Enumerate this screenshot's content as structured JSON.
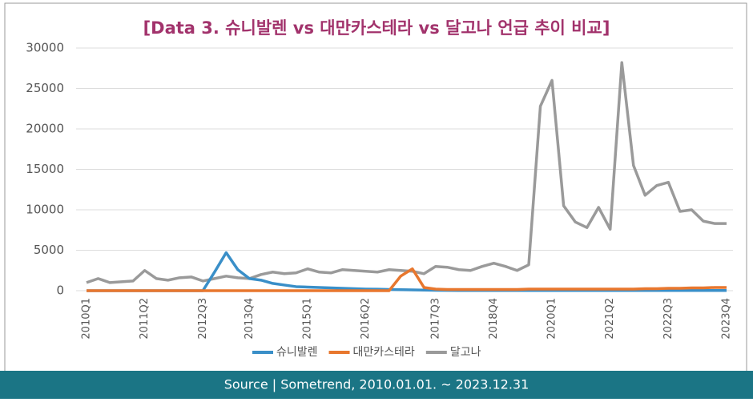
{
  "chart_data": {
    "type": "line",
    "title": "[Data 3. 슈니발렌 vs 대만카스테라 vs 달고나 언급 추이 비교]",
    "source": "Source | Sometrend, 2010.01.01. ~ 2023.12.31",
    "categories": [
      "2010Q1",
      null,
      null,
      null,
      null,
      "2011Q2",
      null,
      null,
      null,
      null,
      "2012Q3",
      null,
      null,
      null,
      "2013Q4",
      null,
      null,
      null,
      null,
      "2015Q1",
      null,
      null,
      null,
      null,
      "2016Q2",
      null,
      null,
      null,
      null,
      null,
      "2017Q3",
      null,
      null,
      null,
      null,
      "2018Q4",
      null,
      null,
      null,
      null,
      "2020Q1",
      null,
      null,
      null,
      null,
      "2021Q2",
      null,
      null,
      null,
      null,
      "2022Q3",
      null,
      null,
      null,
      null,
      "2023Q4"
    ],
    "series": [
      {
        "name": "슈니발렌",
        "color": "#3a8fc8",
        "values": [
          0,
          0,
          0,
          0,
          0,
          0,
          0,
          0,
          0,
          0,
          0,
          2300,
          4700,
          2600,
          1500,
          1300,
          900,
          700,
          500,
          450,
          400,
          350,
          300,
          250,
          200,
          180,
          150,
          120,
          100,
          80,
          50,
          40,
          30,
          30,
          30,
          30,
          30,
          30,
          30,
          30,
          30,
          30,
          30,
          30,
          30,
          30,
          30,
          30,
          30,
          30,
          30,
          30,
          30,
          30,
          30,
          30
        ]
      },
      {
        "name": "대만카스테라",
        "color": "#e8772e",
        "values": [
          0,
          0,
          0,
          0,
          0,
          0,
          0,
          0,
          0,
          0,
          0,
          0,
          0,
          0,
          0,
          0,
          0,
          0,
          0,
          0,
          0,
          0,
          0,
          0,
          0,
          0,
          0,
          1800,
          2700,
          400,
          200,
          150,
          150,
          150,
          150,
          150,
          150,
          150,
          200,
          200,
          200,
          200,
          200,
          200,
          200,
          200,
          200,
          200,
          250,
          250,
          300,
          300,
          350,
          350,
          400,
          400
        ]
      },
      {
        "name": "달고나",
        "color": "#9a9a9a",
        "values": [
          1000,
          1500,
          1000,
          1100,
          1200,
          2500,
          1500,
          1300,
          1600,
          1700,
          1200,
          1500,
          1800,
          1600,
          1500,
          2000,
          2300,
          2100,
          2200,
          2700,
          2300,
          2200,
          2600,
          2500,
          2400,
          2300,
          2600,
          2500,
          2400,
          2100,
          3000,
          2900,
          2600,
          2500,
          3000,
          3400,
          3000,
          2500,
          3200,
          22800,
          26000,
          10500,
          8500,
          7800,
          10300,
          7600,
          28200,
          15500,
          11800,
          13000,
          13400,
          9800,
          10000,
          8600,
          8300,
          8300
        ]
      }
    ],
    "ylim": [
      0,
      30000
    ],
    "yticks": [
      0,
      5000,
      10000,
      15000,
      20000,
      25000,
      30000
    ],
    "grid": true
  }
}
